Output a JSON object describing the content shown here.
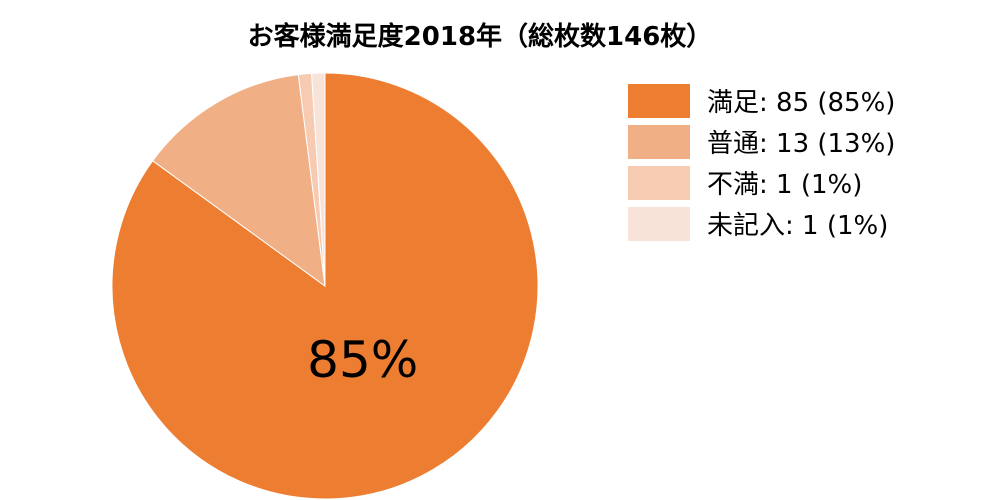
{
  "chart_data": {
    "type": "pie",
    "title": "お客様満足度2018年（総枚数146枚）",
    "slices": [
      {
        "label": "満足",
        "value": 85,
        "percent": 85,
        "color": "#ED7D31",
        "legend_text": "満足: 85 (85%)"
      },
      {
        "label": "普通",
        "value": 13,
        "percent": 13,
        "color": "#F1AF86",
        "legend_text": "普通: 13 (13%)"
      },
      {
        "label": "不満",
        "value": 1,
        "percent": 1,
        "color": "#F6CBB2",
        "legend_text": "不満: 1 (1%)"
      },
      {
        "label": "未記入",
        "value": 1,
        "percent": 1,
        "color": "#F8E3D9",
        "legend_text": "未記入: 1 (1%)"
      }
    ],
    "data_labels": [
      {
        "slice": "満足",
        "text": "85%"
      }
    ],
    "legend_position": "right"
  }
}
